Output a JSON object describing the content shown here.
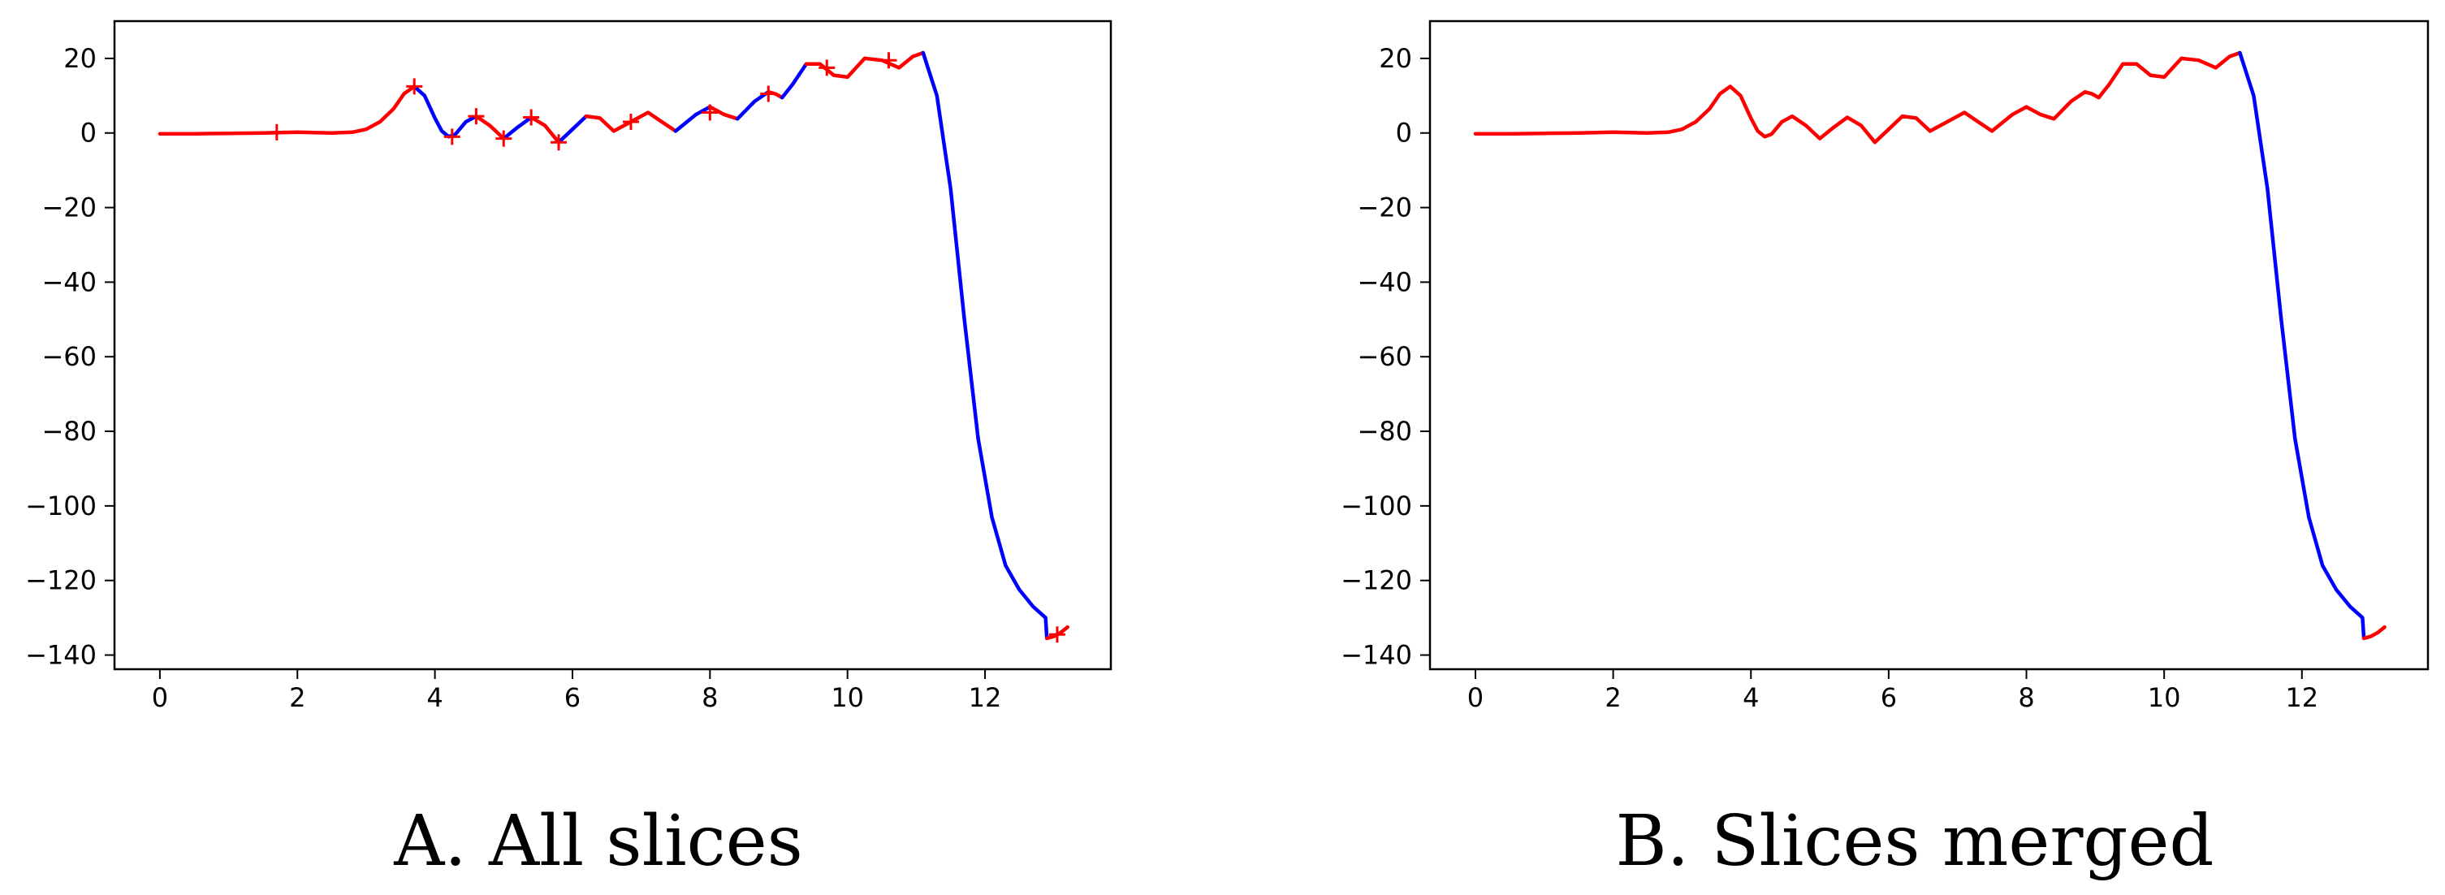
{
  "chart_data": [
    {
      "type": "line",
      "caption": "A. All slices",
      "xlim": [
        -0.66,
        13.83
      ],
      "ylim": [
        -143.8,
        30.0
      ],
      "xticks": [
        0,
        2,
        4,
        6,
        8,
        10,
        12
      ],
      "yticks": [
        20,
        0,
        -20,
        -40,
        -60,
        -80,
        -100,
        -120,
        -140
      ],
      "grid": false,
      "colors": {
        "slice_a": "#ff0000",
        "slice_b": "#0000ff",
        "marker": "#ff0000"
      },
      "segments": [
        {
          "color": "red",
          "x": [
            0.0,
            0.5,
            1.0,
            1.5,
            2.0,
            2.5,
            2.8,
            3.0,
            3.2,
            3.4,
            3.55,
            3.7
          ],
          "y": [
            -0.2,
            -0.2,
            -0.1,
            0.0,
            0.2,
            0.0,
            0.2,
            1.0,
            3.0,
            6.5,
            10.5,
            12.5
          ]
        },
        {
          "color": "blue",
          "x": [
            3.7,
            3.85,
            4.0,
            4.1,
            4.2,
            4.3,
            4.45,
            4.6
          ],
          "y": [
            12.5,
            10.0,
            4.0,
            0.5,
            -1.0,
            -0.3,
            3.0,
            4.5
          ]
        },
        {
          "color": "red",
          "x": [
            4.6,
            4.8,
            5.0
          ],
          "y": [
            4.5,
            2.0,
            -1.5
          ]
        },
        {
          "color": "blue",
          "x": [
            5.0,
            5.2,
            5.4
          ],
          "y": [
            -1.5,
            1.5,
            4.2
          ]
        },
        {
          "color": "red",
          "x": [
            5.4,
            5.6,
            5.8
          ],
          "y": [
            4.2,
            2.0,
            -2.5
          ]
        },
        {
          "color": "blue",
          "x": [
            5.8,
            6.0,
            6.2
          ],
          "y": [
            -2.5,
            1.0,
            4.5
          ]
        },
        {
          "color": "red",
          "x": [
            6.2,
            6.4,
            6.6,
            6.85,
            7.1,
            7.3,
            7.5
          ],
          "y": [
            4.5,
            4.0,
            0.5,
            3.0,
            5.5,
            3.0,
            0.5
          ]
        },
        {
          "color": "blue",
          "x": [
            7.5,
            7.8,
            8.0
          ],
          "y": [
            0.5,
            5.0,
            7.0
          ]
        },
        {
          "color": "red",
          "x": [
            8.0,
            8.2,
            8.4
          ],
          "y": [
            7.0,
            5.0,
            3.8
          ]
        },
        {
          "color": "blue",
          "x": [
            8.4,
            8.65,
            8.85
          ],
          "y": [
            3.8,
            8.5,
            11.0
          ]
        },
        {
          "color": "red",
          "x": [
            8.85,
            8.95,
            9.05
          ],
          "y": [
            11.0,
            10.5,
            9.5
          ]
        },
        {
          "color": "blue",
          "x": [
            9.05,
            9.2,
            9.4
          ],
          "y": [
            9.5,
            13.0,
            18.5
          ]
        },
        {
          "color": "red",
          "x": [
            9.4,
            9.6,
            9.8,
            10.0,
            10.25,
            10.5,
            10.75,
            10.95,
            11.1
          ],
          "y": [
            18.5,
            18.5,
            15.5,
            15.0,
            20.0,
            19.5,
            17.5,
            20.5,
            21.5
          ]
        },
        {
          "color": "blue",
          "x": [
            11.1,
            11.3,
            11.5,
            11.7,
            11.9,
            12.1,
            12.3,
            12.5,
            12.7,
            12.88,
            12.9
          ],
          "y": [
            21.5,
            10.0,
            -15.0,
            -50.0,
            -82.0,
            -103.0,
            -116.0,
            -122.5,
            -127.0,
            -130.0,
            -135.5
          ]
        },
        {
          "color": "red",
          "x": [
            12.9,
            13.0,
            13.1,
            13.2
          ],
          "y": [
            -135.5,
            -135.0,
            -134.0,
            -132.5
          ]
        }
      ],
      "markers": {
        "symbol": "+",
        "x": [
          1.7,
          3.7,
          4.25,
          4.6,
          5.0,
          5.4,
          5.8,
          6.85,
          8.0,
          8.85,
          9.7,
          10.6,
          13.05
        ],
        "y": [
          0.2,
          12.5,
          -1.0,
          4.5,
          -1.5,
          4.2,
          -2.5,
          3.0,
          5.5,
          10.5,
          17.5,
          19.5,
          -134.5
        ]
      }
    },
    {
      "type": "line",
      "caption": "B. Slices merged",
      "xlim": [
        -0.66,
        13.83
      ],
      "ylim": [
        -143.8,
        30.0
      ],
      "xticks": [
        0,
        2,
        4,
        6,
        8,
        10,
        12
      ],
      "yticks": [
        20,
        0,
        -20,
        -40,
        -60,
        -80,
        -100,
        -120,
        -140
      ],
      "grid": false,
      "colors": {
        "slice_a": "#ff0000",
        "slice_b": "#0000ff"
      },
      "segments": [
        {
          "color": "red",
          "x": [
            0.0,
            0.5,
            1.0,
            1.5,
            2.0,
            2.5,
            2.8,
            3.0,
            3.2,
            3.4,
            3.55,
            3.7,
            3.85,
            4.0,
            4.1,
            4.2,
            4.3,
            4.45,
            4.6,
            4.8,
            5.0,
            5.2,
            5.4,
            5.6,
            5.8,
            6.0,
            6.2,
            6.4,
            6.6,
            6.85,
            7.1,
            7.3,
            7.5,
            7.8,
            8.0,
            8.2,
            8.4,
            8.65,
            8.85,
            8.95,
            9.05,
            9.2,
            9.4,
            9.6,
            9.8,
            10.0,
            10.25,
            10.5,
            10.75,
            10.95,
            11.1
          ],
          "y": [
            -0.2,
            -0.2,
            -0.1,
            0.0,
            0.2,
            0.0,
            0.2,
            1.0,
            3.0,
            6.5,
            10.5,
            12.5,
            10.0,
            4.0,
            0.5,
            -1.0,
            -0.3,
            3.0,
            4.5,
            2.0,
            -1.5,
            1.5,
            4.2,
            2.0,
            -2.5,
            1.0,
            4.5,
            4.0,
            0.5,
            3.0,
            5.5,
            3.0,
            0.5,
            5.0,
            7.0,
            5.0,
            3.8,
            8.5,
            11.0,
            10.5,
            9.5,
            13.0,
            18.5,
            18.5,
            15.5,
            15.0,
            20.0,
            19.5,
            17.5,
            20.5,
            21.5
          ]
        },
        {
          "color": "blue",
          "x": [
            11.1,
            11.3,
            11.5,
            11.7,
            11.9,
            12.1,
            12.3,
            12.5,
            12.7,
            12.88,
            12.9
          ],
          "y": [
            21.5,
            10.0,
            -15.0,
            -50.0,
            -82.0,
            -103.0,
            -116.0,
            -122.5,
            -127.0,
            -130.0,
            -135.5
          ]
        },
        {
          "color": "red",
          "x": [
            12.9,
            13.0,
            13.1,
            13.2
          ],
          "y": [
            -135.5,
            -135.0,
            -134.0,
            -132.5
          ]
        }
      ],
      "markers": {
        "symbol": "+",
        "x": [],
        "y": []
      }
    }
  ]
}
